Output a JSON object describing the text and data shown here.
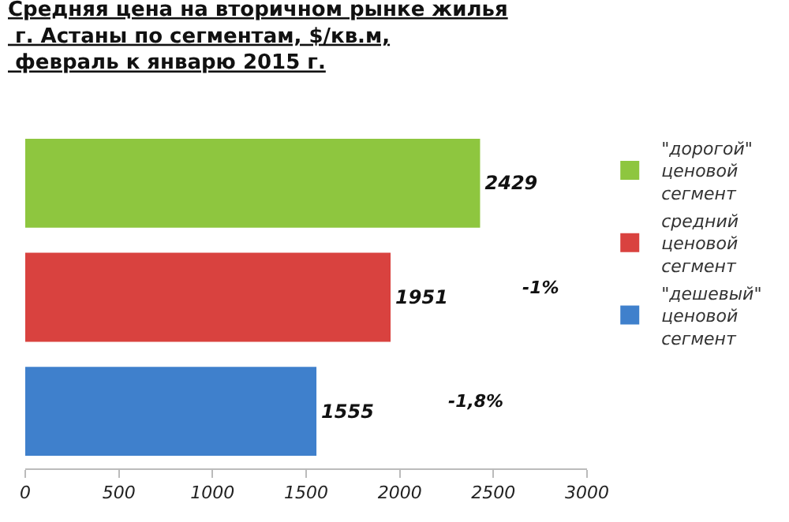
{
  "chart_data": {
    "type": "bar",
    "orientation": "horizontal",
    "stacked": true,
    "title": "Средняя цена на вторичном рынке жилья\n г. Астаны по сегментам, $/кв.м,\n февраль к январю 2015 г.",
    "categories": [
      null,
      null,
      null
    ],
    "series": [
      {
        "name": "\"дорогой\" ценовой сегмент",
        "color": "#8ec63f",
        "values": [
          2429,
          null,
          null
        ]
      },
      {
        "name": "средний ценовой сегмент",
        "color": "#d9423f",
        "values": [
          null,
          1951,
          null
        ]
      },
      {
        "name": "\"дешевый\" ценовой сегмент",
        "color": "#3f80cc",
        "values": [
          null,
          null,
          1555
        ]
      }
    ],
    "xlim": [
      0,
      3000
    ],
    "xticks": [
      0,
      500,
      1000,
      1500,
      2000,
      2500,
      3000
    ],
    "data_labels": true,
    "legend": "right",
    "annotations": [
      "-1%",
      "-1,8%"
    ]
  }
}
